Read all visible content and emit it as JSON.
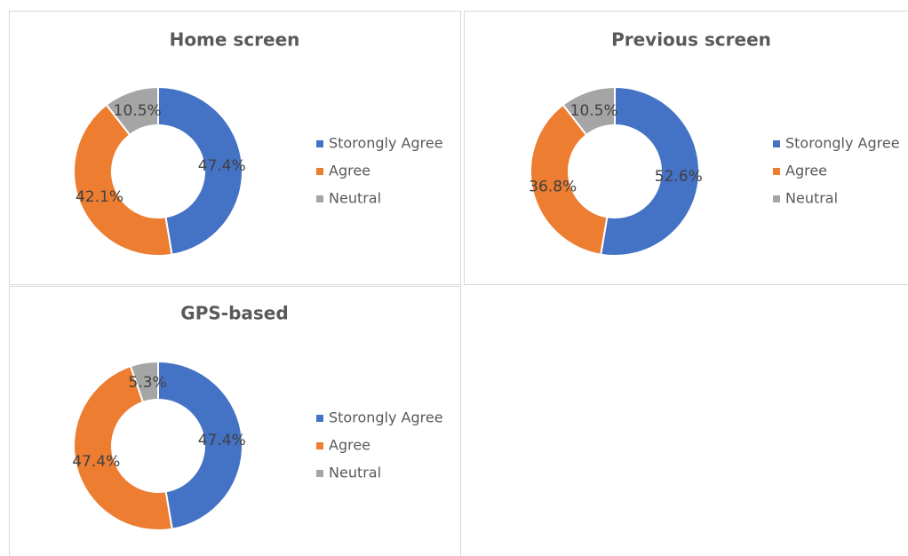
{
  "chart_data": [
    {
      "type": "pie",
      "title": "Home screen",
      "categories": [
        "Storongly Agree",
        "Agree",
        "Neutral"
      ],
      "values": [
        47.4,
        42.1,
        10.5
      ],
      "value_labels": [
        "47.4%",
        "42.1%",
        "10.5%"
      ],
      "colors": [
        "#4472c4",
        "#ed7d31",
        "#a5a5a5"
      ]
    },
    {
      "type": "pie",
      "title": "Previous screen",
      "categories": [
        "Storongly Agree",
        "Agree",
        "Neutral"
      ],
      "values": [
        52.6,
        36.8,
        10.5
      ],
      "value_labels": [
        "52.6%",
        "36.8%",
        "10.5%"
      ],
      "colors": [
        "#4472c4",
        "#ed7d31",
        "#a5a5a5"
      ]
    },
    {
      "type": "pie",
      "title": "GPS-based",
      "categories": [
        "Storongly Agree",
        "Agree",
        "Neutral"
      ],
      "values": [
        47.4,
        47.4,
        5.3
      ],
      "value_labels": [
        "47.4%",
        "47.4%",
        "5.3%"
      ],
      "colors": [
        "#4472c4",
        "#ed7d31",
        "#a5a5a5"
      ]
    }
  ]
}
